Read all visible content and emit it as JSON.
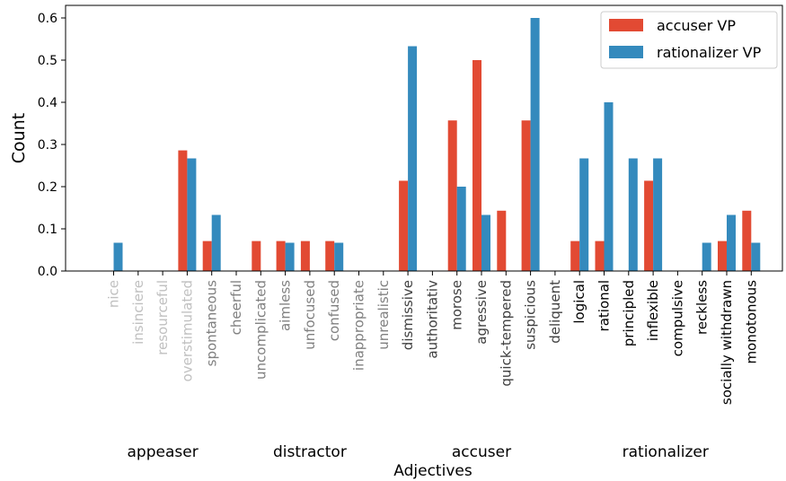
{
  "chart_data": {
    "type": "bar",
    "xlabel": "Adjectives",
    "ylabel": "Count",
    "ylim": [
      0,
      0.625
    ],
    "yticks": [
      "0.0",
      "0.1",
      "0.2",
      "0.3",
      "0.4",
      "0.5",
      "0.6"
    ],
    "grid": false,
    "legend_position": "top-right",
    "categories": [
      "nice",
      "insinciere",
      "resourceful",
      "overstimulated",
      "spontaneous",
      "cheerful",
      "uncomplicated",
      "aimless",
      "unfocused",
      "confused",
      "inappropriate",
      "unrealistic",
      "dismissive",
      "authoritativ",
      "morose",
      "agressive",
      "quick-tempered",
      "suspicious",
      "deliquent",
      "logical",
      "rational",
      "principled",
      "inflexible",
      "compulsive",
      "reckless",
      "socially withdrawn",
      "monotonous"
    ],
    "label_colors": [
      "#c0c0c0",
      "#c0c0c0",
      "#c0c0c0",
      "#c0c0c0",
      "#808080",
      "#808080",
      "#808080",
      "#808080",
      "#808080",
      "#808080",
      "#808080",
      "#808080",
      "#404040",
      "#404040",
      "#404040",
      "#404040",
      "#404040",
      "#404040",
      "#404040",
      "#000000",
      "#000000",
      "#000000",
      "#000000",
      "#000000",
      "#000000",
      "#000000",
      "#000000"
    ],
    "series": [
      {
        "name": "accuser VP",
        "color": "#e24a33",
        "values": [
          0,
          0,
          0,
          0.286,
          0.071,
          0,
          0.071,
          0.071,
          0.071,
          0.071,
          0,
          0,
          0.214,
          0,
          0.357,
          0.5,
          0.143,
          0.357,
          0,
          0.071,
          0.071,
          0,
          0.214,
          0,
          0,
          0.071,
          0.143
        ]
      },
      {
        "name": "rationalizer VP",
        "color": "#348abd",
        "values": [
          0.067,
          0,
          0,
          0.267,
          0.133,
          0,
          0,
          0.067,
          0,
          0.067,
          0,
          0,
          0.533,
          0,
          0.2,
          0.133,
          0,
          0.6,
          0,
          0.267,
          0.4,
          0.267,
          0.267,
          0,
          0.067,
          0.133,
          0.067
        ]
      }
    ],
    "groups": [
      {
        "label": "appeaser",
        "start": 0,
        "end": 4
      },
      {
        "label": "distractor",
        "start": 5,
        "end": 11
      },
      {
        "label": "accuser",
        "start": 12,
        "end": 18
      },
      {
        "label": "rationalizer",
        "start": 19,
        "end": 26
      }
    ]
  }
}
